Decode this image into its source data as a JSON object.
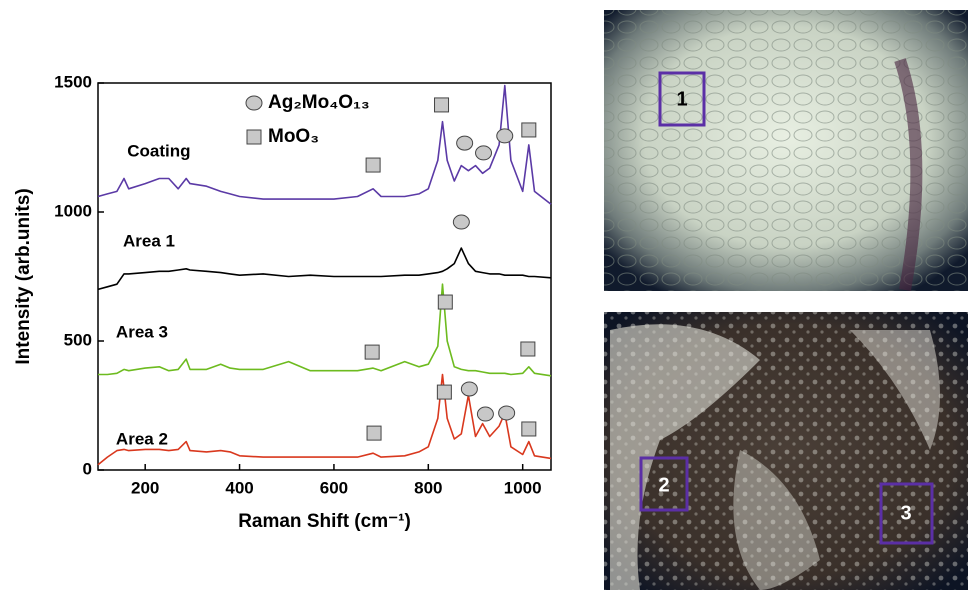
{
  "chart_data": {
    "type": "line",
    "xlabel": "Raman Shift (cm⁻¹)",
    "ylabel": "Intensity (arb.units)",
    "xlim": [
      100,
      1060
    ],
    "ylim": [
      0,
      1500
    ],
    "xticks": [
      200,
      400,
      600,
      800,
      1000
    ],
    "yticks": [
      0,
      500,
      1000,
      1500
    ],
    "x": [
      100,
      120,
      140,
      155,
      165,
      200,
      230,
      250,
      270,
      287,
      295,
      330,
      360,
      380,
      400,
      450,
      504,
      550,
      600,
      650,
      683,
      700,
      750,
      780,
      800,
      820,
      830,
      840,
      855,
      870,
      885,
      900,
      915,
      930,
      950,
      962,
      975,
      1000,
      1013,
      1025,
      1060
    ],
    "series": [
      {
        "name": "Coating",
        "color": "#5b3aa6",
        "label_x": 162,
        "label_y": 1233,
        "values": [
          1060,
          1070,
          1080,
          1130,
          1090,
          1110,
          1130,
          1130,
          1090,
          1130,
          1110,
          1100,
          1080,
          1070,
          1060,
          1050,
          1050,
          1050,
          1050,
          1060,
          1090,
          1060,
          1060,
          1070,
          1090,
          1200,
          1350,
          1200,
          1120,
          1180,
          1160,
          1180,
          1150,
          1170,
          1260,
          1490,
          1200,
          1080,
          1260,
          1080,
          1030
        ]
      },
      {
        "name": "Area 1",
        "color": "#000000",
        "label_x": 153,
        "label_y": 884,
        "values": [
          700,
          710,
          720,
          760,
          760,
          765,
          770,
          770,
          775,
          780,
          775,
          770,
          765,
          760,
          755,
          760,
          750,
          755,
          750,
          750,
          750,
          750,
          755,
          755,
          760,
          765,
          770,
          780,
          800,
          860,
          800,
          770,
          765,
          760,
          760,
          755,
          755,
          755,
          750,
          750,
          745
        ]
      },
      {
        "name": "Area 3",
        "color": "#6dbb1f",
        "label_x": 138,
        "label_y": 531,
        "values": [
          370,
          370,
          375,
          390,
          385,
          395,
          400,
          385,
          390,
          430,
          390,
          390,
          410,
          395,
          390,
          390,
          420,
          385,
          385,
          385,
          395,
          385,
          420,
          400,
          410,
          480,
          720,
          500,
          400,
          390,
          385,
          385,
          380,
          375,
          375,
          375,
          370,
          375,
          400,
          375,
          365
        ]
      },
      {
        "name": "Area 2",
        "color": "#d9381e",
        "label_x": 138,
        "label_y": 116,
        "values": [
          20,
          50,
          75,
          80,
          75,
          80,
          80,
          75,
          80,
          110,
          75,
          70,
          75,
          70,
          55,
          50,
          50,
          50,
          50,
          50,
          65,
          50,
          55,
          70,
          90,
          200,
          370,
          200,
          120,
          140,
          290,
          130,
          180,
          130,
          170,
          220,
          90,
          60,
          110,
          55,
          45
        ]
      }
    ],
    "legend": [
      {
        "shape": "circle",
        "label": "Ag₂Mo₄O₁₃"
      },
      {
        "shape": "square",
        "label": "MoO₃"
      }
    ],
    "markers": [
      {
        "shape": "square",
        "x": 683,
        "y": 1182
      },
      {
        "shape": "square",
        "x": 828,
        "y": 1415
      },
      {
        "shape": "square",
        "x": 1013,
        "y": 1318
      },
      {
        "shape": "circle",
        "x": 877,
        "y": 1267
      },
      {
        "shape": "circle",
        "x": 917,
        "y": 1229
      },
      {
        "shape": "circle",
        "x": 962,
        "y": 1295
      },
      {
        "shape": "circle",
        "x": 870,
        "y": 961
      },
      {
        "shape": "square",
        "x": 681,
        "y": 457
      },
      {
        "shape": "square",
        "x": 836,
        "y": 651
      },
      {
        "shape": "square",
        "x": 1011,
        "y": 469
      },
      {
        "shape": "square",
        "x": 685,
        "y": 143
      },
      {
        "shape": "square",
        "x": 834,
        "y": 302
      },
      {
        "shape": "square",
        "x": 1013,
        "y": 159
      },
      {
        "shape": "circle",
        "x": 887,
        "y": 314
      },
      {
        "shape": "circle",
        "x": 921,
        "y": 217
      },
      {
        "shape": "circle",
        "x": 966,
        "y": 221
      }
    ]
  },
  "micrographs": {
    "labels": [
      "1",
      "2",
      "3"
    ]
  }
}
